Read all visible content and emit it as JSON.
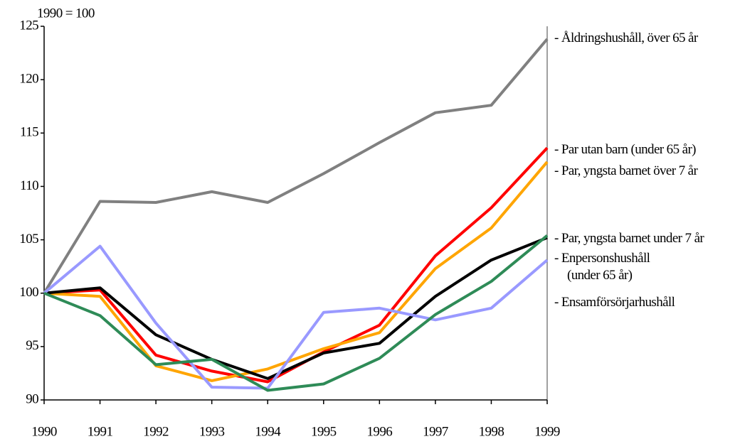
{
  "chart_data": {
    "type": "line",
    "subtitle": "1990 = 100",
    "categories": [
      "1990",
      "1991",
      "1992",
      "1993",
      "1994",
      "1995",
      "1996",
      "1997",
      "1998",
      "1999"
    ],
    "ylim": [
      90,
      125
    ],
    "yticks": [
      90,
      95,
      100,
      105,
      110,
      115,
      120,
      125
    ],
    "series": [
      {
        "name": "- Åldringshushåll, över 65 år",
        "color": "#808080",
        "values": [
          100,
          108.6,
          108.5,
          109.5,
          108.5,
          111.2,
          114.1,
          116.9,
          117.6,
          123.8
        ]
      },
      {
        "name": "- Par utan barn (under 65 år)",
        "color": "#ff0000",
        "values": [
          100,
          100.3,
          94.2,
          92.7,
          91.7,
          94.5,
          97.0,
          103.5,
          108.0,
          113.6
        ]
      },
      {
        "name": "- Par, yngsta barnet  över 7 år",
        "color": "#ffa500",
        "values": [
          100,
          99.7,
          93.2,
          91.8,
          92.9,
          94.8,
          96.3,
          102.3,
          106.1,
          112.3
        ]
      },
      {
        "name": "- Par, yngsta barnet under 7 år",
        "color": "#000000",
        "values": [
          100,
          100.5,
          96.1,
          93.8,
          92.0,
          94.4,
          95.3,
          99.7,
          103.1,
          105.2
        ]
      },
      {
        "name": "- Enpersonshushåll\n(under 65 år)",
        "color": "#9999ff",
        "values": [
          100,
          104.4,
          97.2,
          91.2,
          91.1,
          98.2,
          98.6,
          97.5,
          98.6,
          103.1
        ]
      },
      {
        "name": "- Ensamförsörjarhushåll",
        "color": "#2e8b57",
        "values": [
          100,
          97.9,
          93.3,
          93.8,
          90.9,
          91.5,
          93.9,
          98.0,
          101.1,
          105.4
        ]
      }
    ]
  }
}
